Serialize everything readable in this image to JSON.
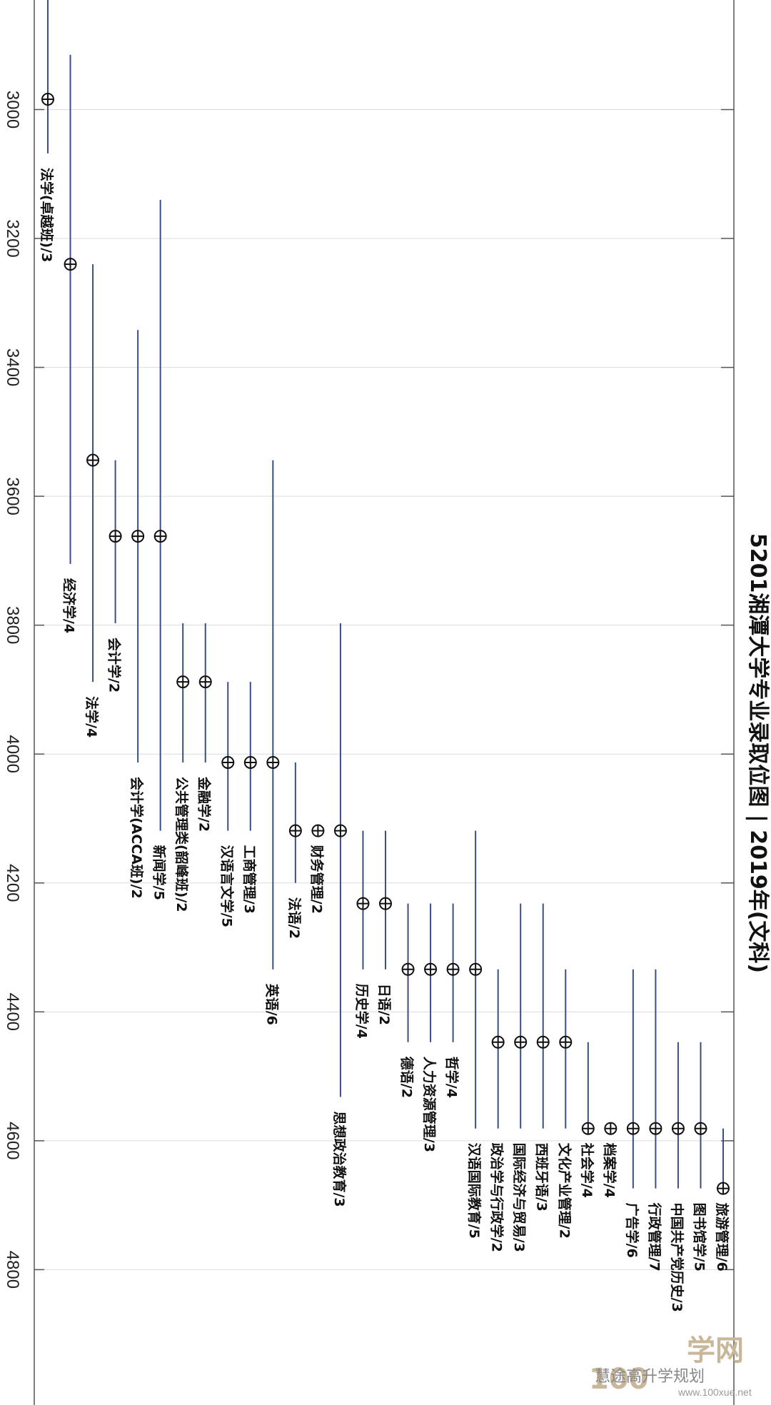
{
  "chart_data": {
    "type": "range",
    "title": "5201湘潭大学专业录取位图 | 2019年(文科)",
    "xlabel": "",
    "ylabel": "",
    "rank_axis": {
      "min": 2830,
      "max": 5010,
      "ticks": [
        3000,
        3200,
        3400,
        3600,
        3800,
        4000,
        4200,
        4400,
        4600,
        4800
      ]
    },
    "grid": true,
    "points": [
      {
        "label": "法学(卓越班)/3",
        "rank": 2984,
        "low": 2815,
        "high": 3068
      },
      {
        "label": "经济学/4",
        "rank": 3240,
        "low": 2915,
        "high": 3705
      },
      {
        "label": "法学/4",
        "rank": 3544,
        "low": 3240,
        "high": 3888
      },
      {
        "label": "会计学/2",
        "rank": 3662,
        "low": 3544,
        "high": 3797
      },
      {
        "label": "会计学(ACCA班)/2",
        "rank": 3662,
        "low": 3342,
        "high": 4013
      },
      {
        "label": "新闻学/5",
        "rank": 3662,
        "low": 3140,
        "high": 4119
      },
      {
        "label": "公共管理类(韶峰班)/2",
        "rank": 3888,
        "low": 3797,
        "high": 4013
      },
      {
        "label": "金融学/2",
        "rank": 3888,
        "low": 3797,
        "high": 4013
      },
      {
        "label": "汉语言文学/5",
        "rank": 4013,
        "low": 3888,
        "high": 4119
      },
      {
        "label": "工商管理/3",
        "rank": 4013,
        "low": 3888,
        "high": 4119
      },
      {
        "label": "英语/6",
        "rank": 4013,
        "low": 3544,
        "high": 4334
      },
      {
        "label": "法语/2",
        "rank": 4119,
        "low": 4013,
        "high": 4200
      },
      {
        "label": "财务管理/2",
        "rank": 4119,
        "low": 4119,
        "high": 4119
      },
      {
        "label": "思想政治教育/3",
        "rank": 4119,
        "low": 3797,
        "high": 4532
      },
      {
        "label": "历史学/4",
        "rank": 4232,
        "low": 4119,
        "high": 4334
      },
      {
        "label": "日语/2",
        "rank": 4232,
        "low": 4119,
        "high": 4334
      },
      {
        "label": "德语/2",
        "rank": 4334,
        "low": 4232,
        "high": 4447
      },
      {
        "label": "人力资源管理/3",
        "rank": 4334,
        "low": 4232,
        "high": 4447
      },
      {
        "label": "哲学/4",
        "rank": 4334,
        "low": 4232,
        "high": 4447
      },
      {
        "label": "汉语国际教育/5",
        "rank": 4334,
        "low": 4119,
        "high": 4581
      },
      {
        "label": "政治学与行政学/2",
        "rank": 4447,
        "low": 4334,
        "high": 4581
      },
      {
        "label": "国际经济与贸易/3",
        "rank": 4447,
        "low": 4232,
        "high": 4581
      },
      {
        "label": "西班牙语/3",
        "rank": 4447,
        "low": 4232,
        "high": 4581
      },
      {
        "label": "文化产业管理/2",
        "rank": 4447,
        "low": 4334,
        "high": 4581
      },
      {
        "label": "社会学/4",
        "rank": 4581,
        "low": 4447,
        "high": 4581
      },
      {
        "label": "档案学/4",
        "rank": 4581,
        "low": 4581,
        "high": 4581
      },
      {
        "label": "广告学/6",
        "rank": 4581,
        "low": 4334,
        "high": 4674
      },
      {
        "label": "行政管理/7",
        "rank": 4581,
        "low": 4334,
        "high": 4674
      },
      {
        "label": "中国共产党历史/3",
        "rank": 4581,
        "low": 4447,
        "high": 4674
      },
      {
        "label": "图书馆学/5",
        "rank": 4581,
        "low": 4447,
        "high": 4674
      },
      {
        "label": "旅游管理/6",
        "rank": 4674,
        "low": 4581,
        "high": 4674
      }
    ]
  },
  "watermark": {
    "account": "慧途高升学规划",
    "logo_number": "100",
    "logo_text": "学网",
    "site": "www.100xue.net"
  },
  "colors": {
    "bar": "#3b4e86",
    "grid": "#d8dbe0",
    "frame": "#555555"
  }
}
